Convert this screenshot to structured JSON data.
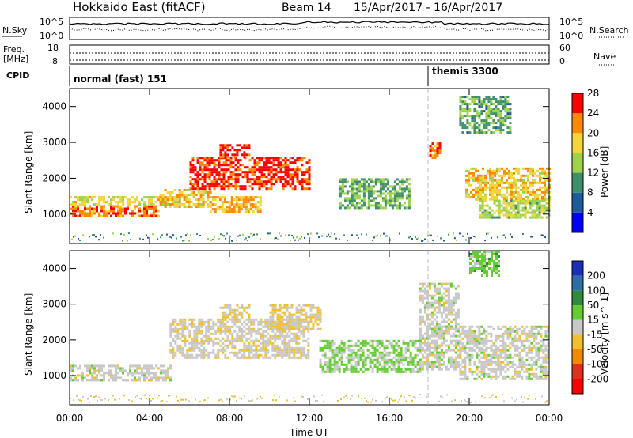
{
  "header": {
    "station": "Hokkaido East (fitACF)",
    "beam": "Beam 14",
    "date_range": "15/Apr/2017 - 16/Apr/2017"
  },
  "top_panels": {
    "noise_left_label": "N.Sky",
    "noise_left_top": "10^5",
    "noise_left_bottom": "10^0",
    "noise_right_label": "N.Search",
    "noise_right_top": "10^5",
    "noise_right_bottom": "10^0",
    "freq_label_1": "Freq.",
    "freq_label_2": "[MHz]",
    "freq_top": "18",
    "freq_bottom": "8",
    "nave_label": "Nave",
    "nave_top": "60",
    "nave_bottom": "0",
    "cpid_label": "CPID",
    "cpid_1": "normal (fast) 151",
    "cpid_2": "themis 3300"
  },
  "x_axis": {
    "label": "Time UT",
    "ticks": [
      "00:00",
      "04:00",
      "08:00",
      "12:00",
      "16:00",
      "20:00",
      "00:00"
    ]
  },
  "colorbars": {
    "power": {
      "label": "Power [dB]",
      "ticks": [
        "4",
        "8",
        "12",
        "16",
        "20",
        "24",
        "28"
      ],
      "colors": [
        "#0000ff",
        "#1e5a9c",
        "#3e8f6a",
        "#9fd24c",
        "#f2d43c",
        "#ff8a00",
        "#ff0000"
      ]
    },
    "velocity": {
      "label": "Velocity [m s^-1]",
      "ticks": [
        "200",
        "100",
        "50",
        "15",
        "-15",
        "-50",
        "-100",
        "-200"
      ],
      "colors": [
        "#1a2fb5",
        "#2e6ea6",
        "#2f8a3c",
        "#66cc33",
        "#c8c8c8",
        "#f0c030",
        "#f08a00",
        "#e03020",
        "#ff0000"
      ]
    }
  },
  "chart_data": [
    {
      "type": "heatmap",
      "panel": "power",
      "ylabel": "Slant Range [km]",
      "xlabel": "",
      "xlim_hours": [
        0,
        24
      ],
      "ylim": [
        180,
        4500
      ],
      "yticks": [
        1000,
        2000,
        3000,
        4000
      ],
      "colorbar": "Power [dB]",
      "color_range": [
        0,
        30
      ],
      "regions": [
        {
          "t0": 0.0,
          "t1": 4.5,
          "r0": 950,
          "r1": 1250,
          "value": 24
        },
        {
          "t0": 0.0,
          "t1": 5.5,
          "r0": 1250,
          "r1": 1500,
          "value": 18
        },
        {
          "t0": 4.5,
          "t1": 7.0,
          "r0": 1200,
          "r1": 1700,
          "value": 20
        },
        {
          "t0": 6.0,
          "t1": 12.0,
          "r0": 1700,
          "r1": 2600,
          "value": 27
        },
        {
          "t0": 7.5,
          "t1": 9.0,
          "r0": 2600,
          "r1": 2950,
          "value": 28
        },
        {
          "t0": 7.0,
          "t1": 9.5,
          "r0": 1100,
          "r1": 1500,
          "value": 21
        },
        {
          "t0": 13.5,
          "t1": 17.0,
          "r0": 1200,
          "r1": 2000,
          "value": 13
        },
        {
          "t0": 18.0,
          "t1": 18.5,
          "r0": 2600,
          "r1": 3000,
          "value": 25
        },
        {
          "t0": 19.8,
          "t1": 24.0,
          "r0": 1400,
          "r1": 2300,
          "value": 20
        },
        {
          "t0": 20.5,
          "t1": 24.0,
          "r0": 900,
          "r1": 1400,
          "value": 16
        },
        {
          "t0": 19.5,
          "t1": 22.0,
          "r0": 3300,
          "r1": 4300,
          "value": 12
        }
      ]
    },
    {
      "type": "heatmap",
      "panel": "velocity",
      "ylabel": "Slant Range [km]",
      "xlabel": "Time UT",
      "xlim_hours": [
        0,
        24
      ],
      "ylim": [
        180,
        4500
      ],
      "yticks": [
        1000,
        2000,
        3000,
        4000
      ],
      "colorbar": "Velocity [m s^-1]",
      "color_range": [
        -200,
        200
      ],
      "regions": [
        {
          "t0": 0.0,
          "t1": 5.0,
          "r0": 850,
          "r1": 1300,
          "value": 0
        },
        {
          "t0": 5.0,
          "t1": 12.0,
          "r0": 1500,
          "r1": 2600,
          "value": -10
        },
        {
          "t0": 7.5,
          "t1": 9.0,
          "r0": 2600,
          "r1": 3000,
          "value": -30
        },
        {
          "t0": 10.0,
          "t1": 12.5,
          "r0": 2300,
          "r1": 3000,
          "value": -20
        },
        {
          "t0": 12.5,
          "t1": 17.5,
          "r0": 1100,
          "r1": 2000,
          "value": 30
        },
        {
          "t0": 17.5,
          "t1": 19.5,
          "r0": 1200,
          "r1": 3600,
          "value": 0
        },
        {
          "t0": 19.5,
          "t1": 24.0,
          "r0": 900,
          "r1": 2400,
          "value": 0
        },
        {
          "t0": 20.0,
          "t1": 21.5,
          "r0": 3800,
          "r1": 4500,
          "value": 40
        }
      ]
    }
  ]
}
